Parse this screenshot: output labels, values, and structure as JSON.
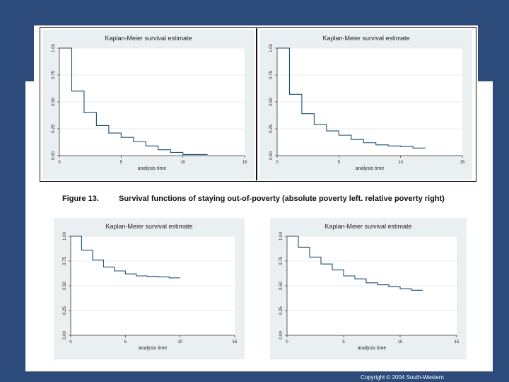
{
  "caption": {
    "label": "Figure 13.",
    "text": "Survival functions of staying out-of-poverty (absolute poverty left. relative poverty right)"
  },
  "footer": {
    "copyright": "Copyright © 2004 South-Western"
  },
  "colors": {
    "slide_bg": "#2c4a7a",
    "plot_bg": "#eaf0f2",
    "line": "#1f4e6b"
  },
  "chart_data": [
    {
      "type": "line",
      "title": "Kaplan-Meier survival estimate",
      "xlabel": "analysis time",
      "xlim": [
        0,
        15
      ],
      "ylim": [
        0,
        1
      ],
      "xticks": [
        "0",
        "5",
        "10",
        "15"
      ],
      "yticks": [
        "0.00",
        "0.25",
        "0.50",
        "0.75",
        "1.00"
      ],
      "step_x": [
        0,
        1,
        2,
        3,
        4,
        5,
        6,
        7,
        8,
        9,
        10,
        11,
        12
      ],
      "step_y": [
        1.0,
        0.6,
        0.4,
        0.28,
        0.21,
        0.17,
        0.13,
        0.09,
        0.055,
        0.03,
        0.01,
        0.01,
        0.01
      ]
    },
    {
      "type": "line",
      "title": "Kaplan-Meier survival estimate",
      "xlabel": "analysis time",
      "xlim": [
        0,
        15
      ],
      "ylim": [
        0,
        1
      ],
      "xticks": [
        "0",
        "5",
        "10",
        "15"
      ],
      "yticks": [
        "0.00",
        "0.25",
        "0.50",
        "0.75",
        "1.00"
      ],
      "step_x": [
        0,
        1,
        2,
        3,
        4,
        5,
        6,
        7,
        8,
        9,
        10,
        11,
        12
      ],
      "step_y": [
        1.0,
        0.57,
        0.39,
        0.29,
        0.23,
        0.19,
        0.15,
        0.12,
        0.1,
        0.09,
        0.085,
        0.07,
        0.07
      ]
    },
    {
      "type": "line",
      "title": "Kaplan-Meier survival estimate",
      "xlabel": "analysis time",
      "xlim": [
        0,
        15
      ],
      "ylim": [
        0,
        1
      ],
      "xticks": [
        "0",
        "5",
        "10",
        "15"
      ],
      "yticks": [
        "0.00",
        "0.25",
        "0.50",
        "0.75",
        "1.00"
      ],
      "step_x": [
        0,
        1,
        2,
        3,
        4,
        5,
        6,
        7,
        8,
        9,
        10
      ],
      "step_y": [
        1.0,
        0.86,
        0.76,
        0.69,
        0.65,
        0.62,
        0.6,
        0.595,
        0.59,
        0.58,
        0.58
      ]
    },
    {
      "type": "line",
      "title": "Kaplan-Meier survival estimate",
      "xlabel": "analysis time",
      "xlim": [
        0,
        15
      ],
      "ylim": [
        0,
        1
      ],
      "xticks": [
        "0",
        "5",
        "10",
        "15"
      ],
      "yticks": [
        "0.00",
        "0.25",
        "0.50",
        "0.75",
        "1.00"
      ],
      "step_x": [
        0,
        1,
        2,
        3,
        4,
        5,
        6,
        7,
        8,
        9,
        10,
        11,
        12
      ],
      "step_y": [
        1.0,
        0.89,
        0.79,
        0.72,
        0.66,
        0.6,
        0.57,
        0.53,
        0.51,
        0.49,
        0.47,
        0.455,
        0.455
      ]
    }
  ]
}
